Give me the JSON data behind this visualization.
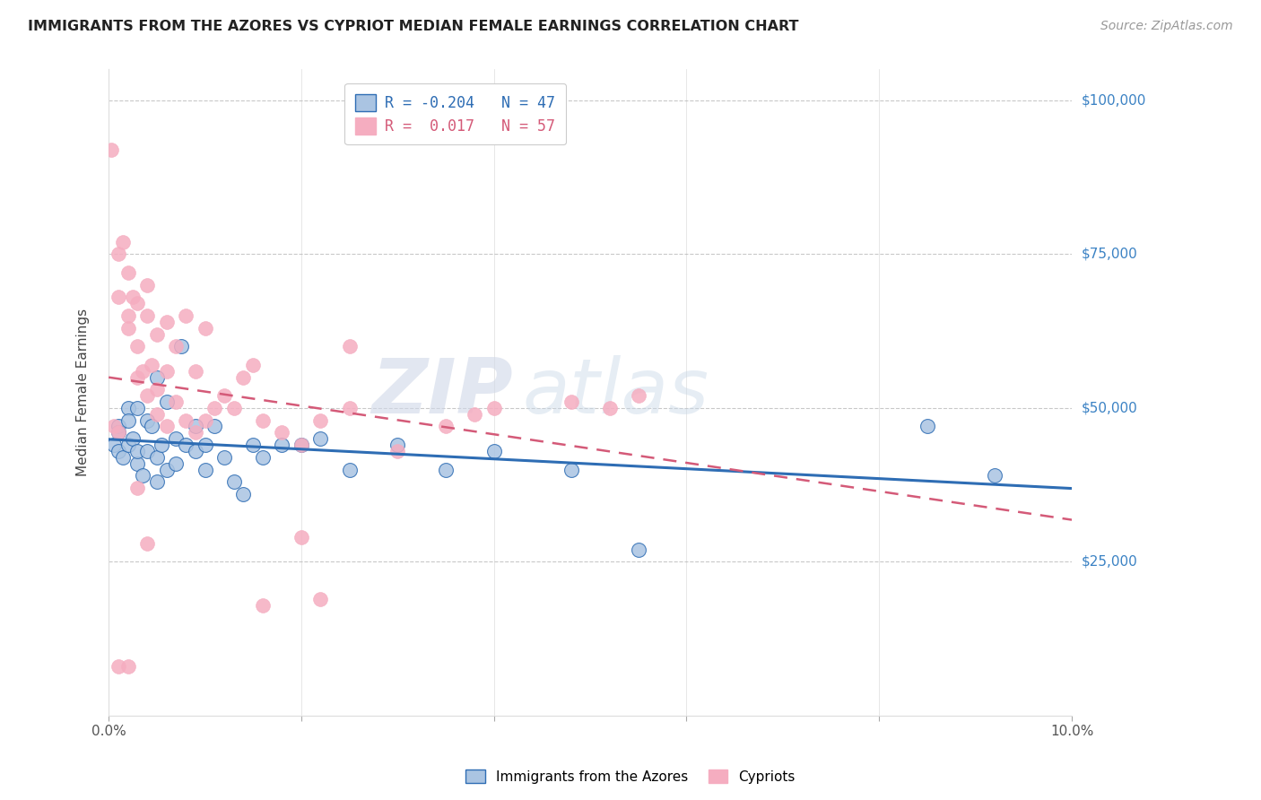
{
  "title": "IMMIGRANTS FROM THE AZORES VS CYPRIOT MEDIAN FEMALE EARNINGS CORRELATION CHART",
  "source": "Source: ZipAtlas.com",
  "ylabel": "Median Female Earnings",
  "xlim": [
    0.0,
    0.1
  ],
  "ylim": [
    0,
    105000
  ],
  "yticks": [
    25000,
    50000,
    75000,
    100000
  ],
  "ytick_labels": [
    "$25,000",
    "$50,000",
    "$75,000",
    "$100,000"
  ],
  "xticks": [
    0.0,
    0.02,
    0.04,
    0.06,
    0.08,
    0.1
  ],
  "xtick_labels": [
    "0.0%",
    "",
    "",
    "",
    "",
    "10.0%"
  ],
  "watermark_zip": "ZIP",
  "watermark_atlas": "atlas",
  "legend_r_azores": "-0.204",
  "legend_n_azores": "47",
  "legend_r_cypriots": "0.017",
  "legend_n_cypriots": "57",
  "color_azores": "#aac4e2",
  "color_cypriots": "#f5adc0",
  "line_color_azores": "#2e6db4",
  "line_color_cypriots": "#d45a78",
  "tick_color": "#3b82c4",
  "background_color": "#ffffff",
  "grid_color": "#bbbbbb",
  "azores_x": [
    0.0005,
    0.001,
    0.001,
    0.001,
    0.0015,
    0.002,
    0.002,
    0.002,
    0.0025,
    0.003,
    0.003,
    0.003,
    0.0035,
    0.004,
    0.004,
    0.0045,
    0.005,
    0.005,
    0.005,
    0.0055,
    0.006,
    0.006,
    0.007,
    0.007,
    0.0075,
    0.008,
    0.009,
    0.009,
    0.01,
    0.01,
    0.011,
    0.012,
    0.013,
    0.014,
    0.015,
    0.016,
    0.018,
    0.02,
    0.022,
    0.025,
    0.03,
    0.035,
    0.04,
    0.048,
    0.055,
    0.085,
    0.092
  ],
  "azores_y": [
    44000,
    47000,
    43000,
    46000,
    42000,
    50000,
    48000,
    44000,
    45000,
    41000,
    43000,
    50000,
    39000,
    48000,
    43000,
    47000,
    42000,
    38000,
    55000,
    44000,
    40000,
    51000,
    45000,
    41000,
    60000,
    44000,
    47000,
    43000,
    40000,
    44000,
    47000,
    42000,
    38000,
    36000,
    44000,
    42000,
    44000,
    44000,
    45000,
    40000,
    44000,
    40000,
    43000,
    40000,
    27000,
    47000,
    39000
  ],
  "cypriots_x": [
    0.0003,
    0.0005,
    0.001,
    0.001,
    0.001,
    0.0015,
    0.002,
    0.002,
    0.002,
    0.0025,
    0.003,
    0.003,
    0.003,
    0.0035,
    0.004,
    0.004,
    0.004,
    0.0045,
    0.005,
    0.005,
    0.005,
    0.006,
    0.006,
    0.006,
    0.007,
    0.007,
    0.008,
    0.008,
    0.009,
    0.009,
    0.01,
    0.01,
    0.011,
    0.012,
    0.013,
    0.014,
    0.015,
    0.016,
    0.018,
    0.02,
    0.022,
    0.025,
    0.03,
    0.035,
    0.038,
    0.04,
    0.048,
    0.052,
    0.001,
    0.002,
    0.003,
    0.004,
    0.016,
    0.02,
    0.022,
    0.025,
    0.055
  ],
  "cypriots_y": [
    92000,
    47000,
    46000,
    75000,
    68000,
    77000,
    65000,
    72000,
    63000,
    68000,
    60000,
    55000,
    67000,
    56000,
    70000,
    52000,
    65000,
    57000,
    49000,
    62000,
    53000,
    47000,
    56000,
    64000,
    51000,
    60000,
    48000,
    65000,
    46000,
    56000,
    48000,
    63000,
    50000,
    52000,
    50000,
    55000,
    57000,
    48000,
    46000,
    44000,
    48000,
    60000,
    43000,
    47000,
    49000,
    50000,
    51000,
    50000,
    8000,
    8000,
    37000,
    28000,
    18000,
    29000,
    19000,
    50000,
    52000
  ]
}
